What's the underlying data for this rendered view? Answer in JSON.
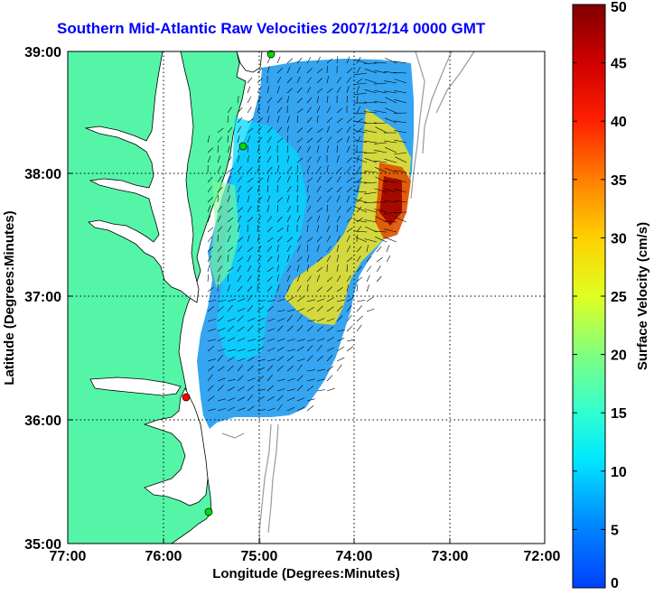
{
  "title": "Southern Mid-Atlantic Raw Velocities 2007/12/14 0000 GMT",
  "xlabel": "Longitude (Degrees:Minutes)",
  "ylabel": "Latitude (Degrees:Minutes)",
  "colorbar_label": "Surface Velocity (cm/s)",
  "x_ticks": [
    "77:00",
    "76:00",
    "75:00",
    "74:00",
    "73:00",
    "72:00"
  ],
  "y_ticks": [
    "39:00",
    "38:00",
    "37:00",
    "36:00",
    "35:00"
  ],
  "colorbar_ticks": [
    "0",
    "5",
    "10",
    "15",
    "20",
    "25",
    "30",
    "35",
    "40",
    "45",
    "50"
  ],
  "colors": {
    "land": "#55f5a8",
    "coastline": "#000000",
    "bathymetry": "#999999",
    "grid": "#000000",
    "station_active": "#00dd00",
    "station_inactive": "#ff0000"
  },
  "colorbar_range": [
    0,
    50
  ]
}
